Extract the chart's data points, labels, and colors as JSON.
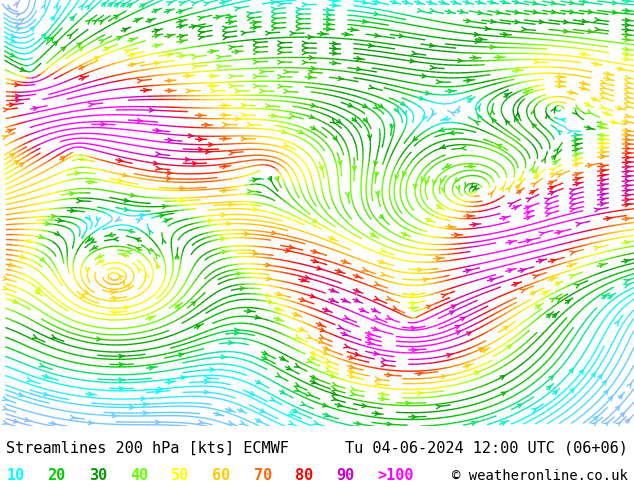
{
  "title_left": "Streamlines 200 hPa [kts] ECMWF",
  "title_right": "Tu 04-06-2024 12:00 UTC (06+06)",
  "copyright": "© weatheronline.co.uk",
  "legend_values": [
    "10",
    "20",
    "30",
    "40",
    "50",
    "60",
    "70",
    "80",
    "90",
    ">100"
  ],
  "legend_colors": [
    "#00ffff",
    "#00cc00",
    "#009900",
    "#66ff00",
    "#ffff00",
    "#ffcc00",
    "#ff6600",
    "#ff0000",
    "#cc00cc",
    "#ff00ff"
  ],
  "bg_color": "#ffffff",
  "text_color": "#000000",
  "title_fontsize": 11,
  "legend_fontsize": 11,
  "copyright_fontsize": 10,
  "streamline_seed_density": 3,
  "colormap_speeds": [
    0,
    10,
    20,
    30,
    40,
    50,
    60,
    70,
    80,
    90,
    100
  ],
  "colormap_hex": [
    "#aaaaff",
    "#00ffff",
    "#00cc00",
    "#009900",
    "#66ff00",
    "#ffff00",
    "#ffcc00",
    "#ff6600",
    "#ff0000",
    "#cc00cc",
    "#ff00ff"
  ]
}
